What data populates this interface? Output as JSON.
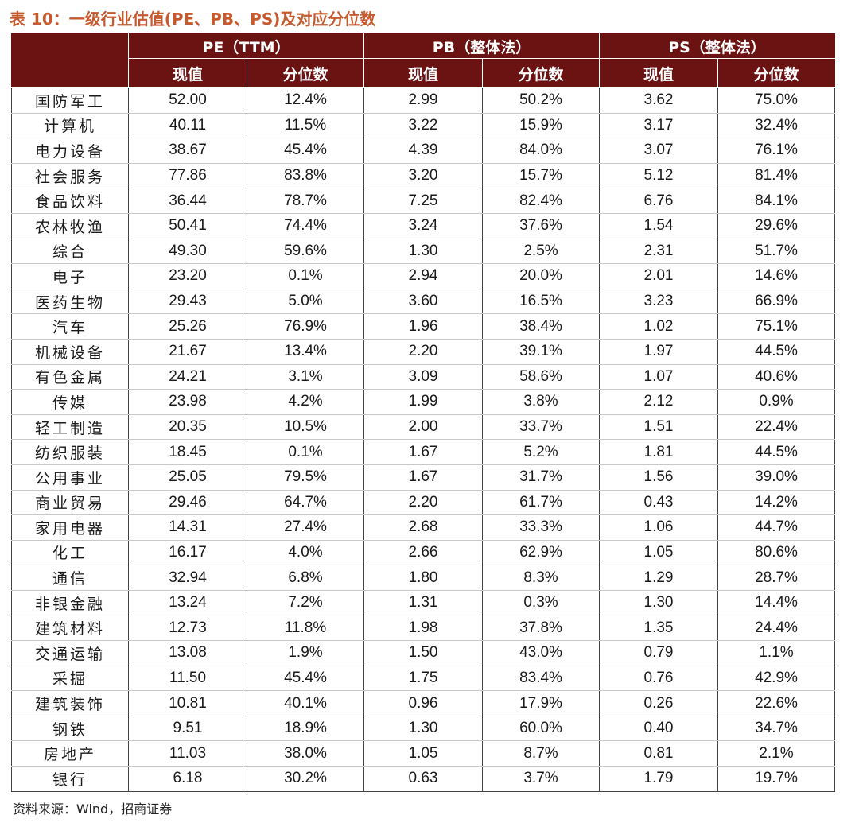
{
  "title": "表 10：一级行业估值(PE、PB、PS)及对应分位数",
  "header_groups": [
    "PE（TTM）",
    "PB（整体法）",
    "PS（整体法）"
  ],
  "sub_headers": [
    "现值",
    "分位数",
    "现值",
    "分位数",
    "现值",
    "分位数"
  ],
  "rows": [
    [
      "国防军工",
      "52.00",
      "12.4%",
      "2.99",
      "50.2%",
      "3.62",
      "75.0%"
    ],
    [
      "计算机",
      "40.11",
      "11.5%",
      "3.22",
      "15.9%",
      "3.17",
      "32.4%"
    ],
    [
      "电力设备",
      "38.67",
      "45.4%",
      "4.39",
      "84.0%",
      "3.07",
      "76.1%"
    ],
    [
      "社会服务",
      "77.86",
      "83.8%",
      "3.20",
      "15.7%",
      "5.12",
      "81.4%"
    ],
    [
      "食品饮料",
      "36.44",
      "78.7%",
      "7.25",
      "82.4%",
      "6.76",
      "84.1%"
    ],
    [
      "农林牧渔",
      "50.41",
      "74.4%",
      "3.24",
      "37.6%",
      "1.54",
      "29.6%"
    ],
    [
      "综合",
      "49.30",
      "59.6%",
      "1.30",
      "2.5%",
      "2.31",
      "51.7%"
    ],
    [
      "电子",
      "23.20",
      "0.1%",
      "2.94",
      "20.0%",
      "2.01",
      "14.6%"
    ],
    [
      "医药生物",
      "29.43",
      "5.0%",
      "3.60",
      "16.5%",
      "3.23",
      "66.9%"
    ],
    [
      "汽车",
      "25.26",
      "76.9%",
      "1.96",
      "38.4%",
      "1.02",
      "75.1%"
    ],
    [
      "机械设备",
      "21.67",
      "13.4%",
      "2.20",
      "39.1%",
      "1.97",
      "44.5%"
    ],
    [
      "有色金属",
      "24.21",
      "3.1%",
      "3.09",
      "58.6%",
      "1.07",
      "40.6%"
    ],
    [
      "传媒",
      "23.98",
      "4.2%",
      "1.99",
      "3.8%",
      "2.12",
      "0.9%"
    ],
    [
      "轻工制造",
      "20.35",
      "10.5%",
      "2.00",
      "33.7%",
      "1.51",
      "22.4%"
    ],
    [
      "纺织服装",
      "18.45",
      "0.1%",
      "1.67",
      "5.2%",
      "1.81",
      "44.5%"
    ],
    [
      "公用事业",
      "25.05",
      "79.5%",
      "1.67",
      "31.7%",
      "1.56",
      "39.0%"
    ],
    [
      "商业贸易",
      "29.46",
      "64.7%",
      "2.20",
      "61.7%",
      "0.43",
      "14.2%"
    ],
    [
      "家用电器",
      "14.31",
      "27.4%",
      "2.68",
      "33.3%",
      "1.06",
      "44.7%"
    ],
    [
      "化工",
      "16.17",
      "4.0%",
      "2.66",
      "62.9%",
      "1.05",
      "80.6%"
    ],
    [
      "通信",
      "32.94",
      "6.8%",
      "1.80",
      "8.3%",
      "1.29",
      "28.7%"
    ],
    [
      "非银金融",
      "13.24",
      "7.2%",
      "1.31",
      "0.3%",
      "1.30",
      "14.4%"
    ],
    [
      "建筑材料",
      "12.73",
      "11.8%",
      "1.98",
      "37.8%",
      "1.35",
      "24.4%"
    ],
    [
      "交通运输",
      "13.08",
      "1.9%",
      "1.50",
      "43.0%",
      "0.79",
      "1.1%"
    ],
    [
      "采掘",
      "11.50",
      "45.4%",
      "1.75",
      "83.4%",
      "0.76",
      "42.9%"
    ],
    [
      "建筑装饰",
      "10.81",
      "40.1%",
      "0.96",
      "17.9%",
      "0.26",
      "22.6%"
    ],
    [
      "钢铁",
      "9.51",
      "18.9%",
      "1.30",
      "60.0%",
      "0.40",
      "34.7%"
    ],
    [
      "房地产",
      "11.03",
      "38.0%",
      "1.05",
      "8.7%",
      "0.81",
      "2.1%"
    ],
    [
      "银行",
      "6.18",
      "30.2%",
      "0.63",
      "3.7%",
      "1.79",
      "19.7%"
    ]
  ],
  "source": "资料来源：Wind，招商证券",
  "colors": {
    "header_bg": "#6b1313",
    "title": "#c65a2e"
  }
}
